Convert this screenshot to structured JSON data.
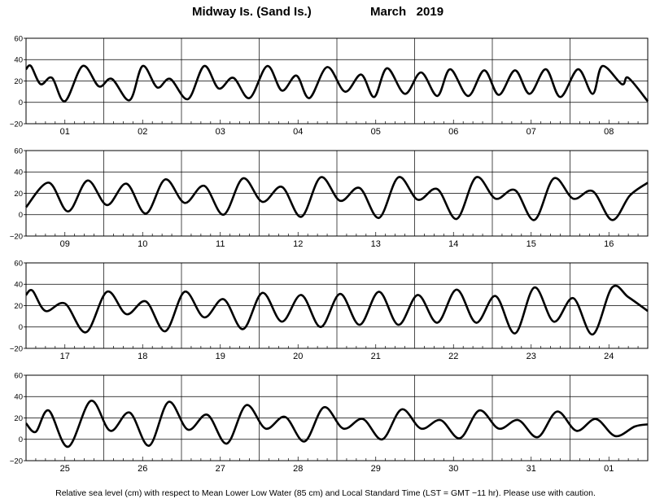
{
  "title": {
    "location": "Midway Is. (Sand Is.)",
    "month": "March   2019"
  },
  "footer": "Relative sea level (cm) with respect to Mean Lower Low Water (85 cm) and Local Standard Time (LST = GMT −11 hr). Please use with caution.",
  "chart_data": {
    "type": "line",
    "title": "Midway Is. (Sand Is.) March 2019",
    "ylabel": "",
    "xlabel": "",
    "ylim": [
      -20,
      60
    ],
    "yticks": [
      -20,
      0,
      20,
      40,
      60
    ],
    "grid": true,
    "panels": [
      {
        "days": [
          "01",
          "02",
          "03",
          "04",
          "05",
          "06",
          "07",
          "08"
        ],
        "series": [
          {
            "name": "",
            "hours": [
              0,
              1.5,
              4.5,
              8,
              12,
              17.5,
              22.5,
              26.5,
              32,
              36,
              40.5,
              44.5,
              50,
              55,
              59.5,
              64,
              69,
              74.5,
              79,
              83.5,
              87.5,
              93,
              98.5,
              103.5,
              107.5,
              111.5,
              117,
              122,
              127,
              131,
              136.5,
              141.5,
              146,
              151,
              155.5,
              160.5,
              165,
              170.5,
              175,
              178,
              184,
              186,
              192
            ],
            "values": [
              31,
              34,
              17,
              23,
              1,
              34,
              15,
              22,
              2,
              34,
              14,
              22,
              3,
              34,
              13,
              23,
              4,
              34,
              11,
              25,
              4,
              33,
              10,
              26,
              5,
              32,
              8,
              28,
              6,
              31,
              6,
              30,
              7,
              30,
              8,
              31,
              5,
              31,
              8,
              34,
              17,
              23,
              1
            ]
          }
        ]
      },
      {
        "days": [
          "09",
          "10",
          "11",
          "12",
          "13",
          "14",
          "15",
          "16"
        ],
        "series": [
          {
            "name": "",
            "hours": [
              0,
              7,
              13,
              19,
              25,
              31,
              37,
              43,
              49,
              55,
              61,
              67,
              73,
              79,
              85,
              91,
              97,
              103,
              109,
              115,
              121,
              127,
              133,
              139,
              145,
              151,
              157,
              163,
              169,
              175,
              181,
              186.5,
              192
            ],
            "values": [
              7,
              30,
              3,
              32,
              9,
              29,
              1,
              33,
              11,
              27,
              0,
              34,
              12,
              26,
              -2,
              35,
              13,
              25,
              -3,
              35,
              14,
              24,
              -4,
              35,
              15,
              23,
              -5,
              34,
              15,
              22,
              -5,
              18,
              30
            ]
          }
        ]
      },
      {
        "days": [
          "17",
          "18",
          "19",
          "20",
          "21",
          "22",
          "23",
          "24"
        ],
        "series": [
          {
            "name": "",
            "hours": [
              0,
              2,
              6,
              12,
              18.5,
              25,
              31,
              37,
              43,
              49,
              55,
              61,
              67,
              73,
              79,
              85,
              91,
              97,
              103,
              109,
              115,
              121,
              127,
              133,
              139,
              145,
              151,
              157,
              163,
              169,
              175,
              181,
              186,
              192
            ],
            "values": [
              30,
              34,
              15,
              22,
              -5,
              33,
              12,
              24,
              -4,
              33,
              9,
              26,
              -2,
              32,
              5,
              30,
              0,
              31,
              2,
              33,
              2,
              30,
              4,
              35,
              4,
              29,
              -6,
              37,
              5,
              27,
              -7,
              37,
              28,
              15
            ]
          }
        ]
      },
      {
        "days": [
          "25",
          "26",
          "27",
          "28",
          "29",
          "30",
          "31",
          "01"
        ],
        "series": [
          {
            "name": "",
            "hours": [
              0,
              3,
              7,
              13,
              20,
              26,
              32,
              38,
              44,
              50,
              56,
              62,
              68,
              74,
              80,
              86,
              92,
              98,
              104,
              110,
              116,
              122,
              128,
              134,
              140,
              146,
              152,
              158,
              164,
              170,
              176,
              182,
              188,
              192
            ],
            "values": [
              15,
              7,
              27,
              -7,
              36,
              8,
              25,
              -6,
              35,
              9,
              23,
              -4,
              32,
              10,
              21,
              -2,
              30,
              10,
              19,
              0,
              28,
              10,
              18,
              1,
              27,
              10,
              18,
              2,
              26,
              8,
              19,
              3,
              12,
              14
            ]
          }
        ]
      }
    ]
  }
}
